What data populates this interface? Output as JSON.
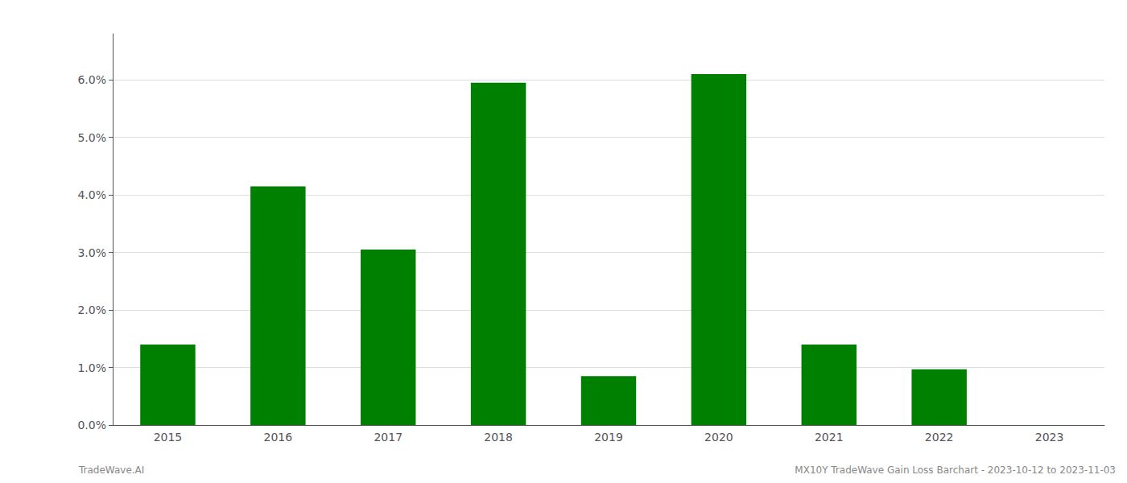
{
  "chart_data": {
    "type": "bar",
    "categories": [
      "2015",
      "2016",
      "2017",
      "2018",
      "2019",
      "2020",
      "2021",
      "2022",
      "2023"
    ],
    "values": [
      0.014,
      0.0415,
      0.0305,
      0.0595,
      0.0085,
      0.061,
      0.014,
      0.0097,
      0.0
    ],
    "color": "#008000",
    "ylim": [
      0.0,
      0.068
    ],
    "yticks": [
      {
        "value": 0.0,
        "label": "0.0%"
      },
      {
        "value": 0.01,
        "label": "1.0%"
      },
      {
        "value": 0.02,
        "label": "2.0%"
      },
      {
        "value": 0.03,
        "label": "3.0%"
      },
      {
        "value": 0.04,
        "label": "4.0%"
      },
      {
        "value": 0.05,
        "label": "5.0%"
      },
      {
        "value": 0.06,
        "label": "6.0%"
      }
    ],
    "grid": true,
    "annotations": [
      "TradeWave.AI",
      "MX10Y TradeWave Gain Loss Barchart - 2023-10-12 to 2023-11-03"
    ]
  }
}
